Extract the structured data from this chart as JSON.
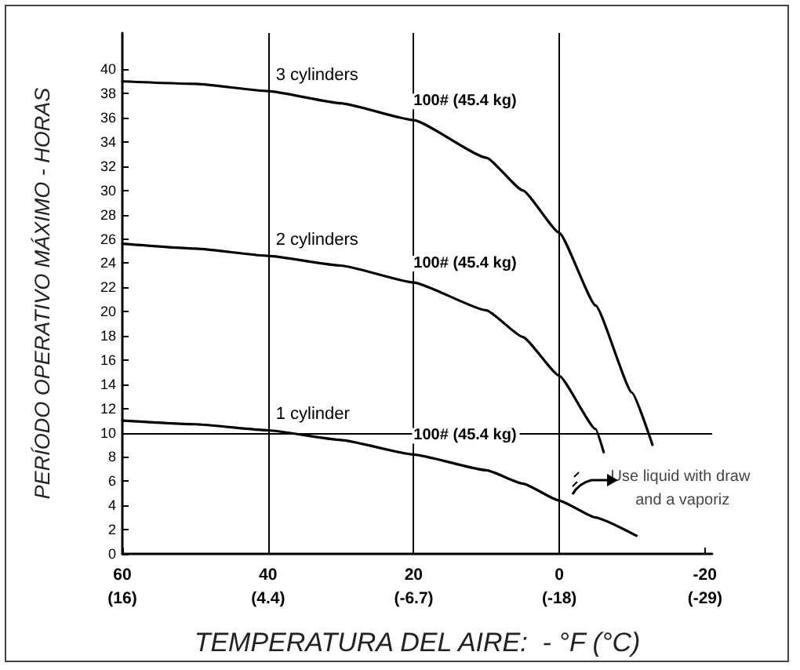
{
  "chart_data": {
    "type": "line",
    "xlabel": "TEMPERATURA DEL AIRE:  - °F (°C)",
    "ylabel": "PERÍODO OPERATIVO MÁXIMO - HORAS",
    "xlim": [
      60,
      -21
    ],
    "xticks": [
      60,
      40,
      20,
      0,
      -20
    ],
    "x2lim": [
      15.56,
      -29.44
    ],
    "x2ticks": [
      {
        "value": 15.56,
        "label": "(16)"
      },
      {
        "value": 4.44,
        "label": "(4.4)"
      },
      {
        "value": -6.67,
        "label": "(-6.7)"
      },
      {
        "value": -17.78,
        "label": "(-18)"
      },
      {
        "value": -28.89,
        "label": "(-29)"
      }
    ],
    "ylim": [
      0,
      43
    ],
    "yticks": [
      0,
      2,
      4,
      6,
      8,
      10,
      12,
      14,
      16,
      18,
      20,
      22,
      24,
      26,
      28,
      30,
      32,
      34,
      36,
      38,
      40
    ],
    "marker": "none",
    "line_style": "solid",
    "grid": false,
    "legend": false,
    "series": [
      {
        "name": "3 cylinders",
        "color": "#000000",
        "x": [
          60,
          50,
          40,
          30,
          20,
          10,
          5,
          0,
          -5,
          -10,
          -12.8
        ],
        "values": [
          39,
          38.8,
          38.2,
          37.2,
          35.8,
          32.7,
          30,
          26.5,
          20.5,
          13.3,
          9
        ]
      },
      {
        "name": "2 cylinders",
        "color": "#000000",
        "x": [
          60,
          50,
          40,
          30,
          20,
          10,
          5,
          0,
          -5,
          -6.1
        ],
        "values": [
          25.6,
          25.2,
          24.6,
          23.8,
          22.4,
          20.1,
          17.9,
          14.7,
          10.3,
          8.4
        ]
      },
      {
        "name": "1 cylinder",
        "color": "#000000",
        "x": [
          60,
          50,
          40,
          30,
          20,
          10,
          5,
          0,
          -5,
          -10.6
        ],
        "values": [
          11,
          10.7,
          10.2,
          9.4,
          8.2,
          6.9,
          5.8,
          4.4,
          3,
          1.5
        ]
      }
    ],
    "ref_lines": [
      {
        "axis": "x",
        "value": 40,
        "color": "#000000"
      },
      {
        "axis": "x",
        "value": 20,
        "color": "#000000"
      },
      {
        "axis": "x",
        "value": 0,
        "color": "#000000"
      },
      {
        "axis": "y",
        "value": 10,
        "color": "#000000"
      }
    ],
    "annotations": [
      "100# (45.4 kg)",
      "100# (45.4 kg)",
      "100# (45.4 kg)",
      "Use liquid with draw and a vaporiz"
    ]
  }
}
